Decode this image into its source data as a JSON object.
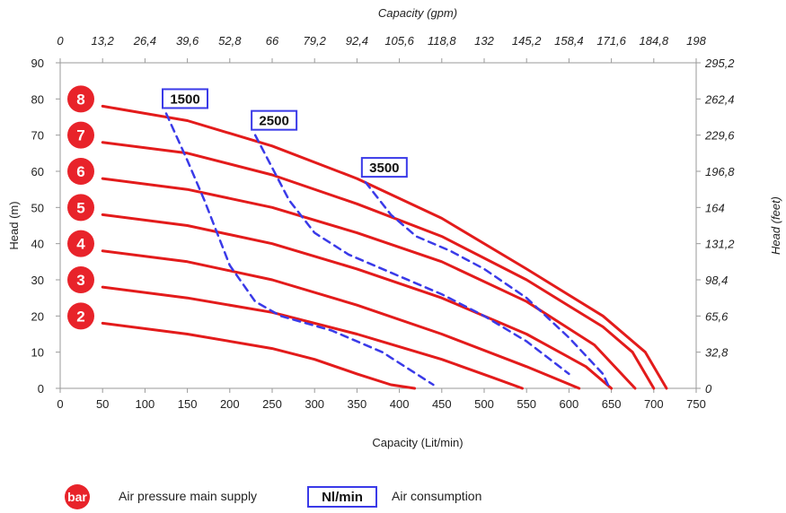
{
  "chart_data": {
    "type": "line",
    "title": "",
    "xlabel": "Capacity (Lit/min)",
    "ylabel": "Head (m)",
    "x2label": "Capacity (gpm)",
    "y2label": "Head (feet)",
    "xlim": [
      0,
      750
    ],
    "ylim": [
      0,
      90
    ],
    "x_ticks": [
      "0",
      "50",
      "100",
      "150",
      "200",
      "250",
      "300",
      "350",
      "400",
      "450",
      "500",
      "550",
      "600",
      "650",
      "700",
      "750"
    ],
    "y_ticks": [
      "0",
      "10",
      "20",
      "30",
      "40",
      "50",
      "60",
      "70",
      "80",
      "90"
    ],
    "x2_ticks": [
      "0",
      "13,2",
      "26,4",
      "39,6",
      "52,8",
      "66",
      "79,2",
      "92,4",
      "105,6",
      "118,8",
      "132",
      "145,2",
      "158,4",
      "171,6",
      "184,8",
      "198"
    ],
    "y2_ticks": [
      "0",
      "32,8",
      "65,6",
      "98,4",
      "131,2",
      "164",
      "196,8",
      "229,6",
      "262,4",
      "295,2"
    ],
    "grid": false,
    "pressure_colors": {
      "line": "#e31b1b",
      "badge": "#e8232a"
    },
    "air_color": "#3a3ae8",
    "series": [
      {
        "name": "2",
        "kind": "pressure",
        "points": [
          [
            50,
            18
          ],
          [
            150,
            15
          ],
          [
            250,
            11
          ],
          [
            300,
            8
          ],
          [
            350,
            4
          ],
          [
            390,
            1
          ],
          [
            418,
            0
          ]
        ]
      },
      {
        "name": "3",
        "kind": "pressure",
        "points": [
          [
            50,
            28
          ],
          [
            150,
            25
          ],
          [
            250,
            21
          ],
          [
            350,
            15
          ],
          [
            450,
            8
          ],
          [
            510,
            3
          ],
          [
            545,
            0
          ]
        ]
      },
      {
        "name": "4",
        "kind": "pressure",
        "points": [
          [
            50,
            38
          ],
          [
            150,
            35
          ],
          [
            250,
            30
          ],
          [
            350,
            23
          ],
          [
            450,
            15
          ],
          [
            550,
            6
          ],
          [
            612,
            0
          ]
        ]
      },
      {
        "name": "5",
        "kind": "pressure",
        "points": [
          [
            50,
            48
          ],
          [
            150,
            45
          ],
          [
            250,
            40
          ],
          [
            350,
            33
          ],
          [
            450,
            25
          ],
          [
            550,
            15
          ],
          [
            620,
            6
          ],
          [
            650,
            0
          ]
        ]
      },
      {
        "name": "6",
        "kind": "pressure",
        "points": [
          [
            50,
            58
          ],
          [
            150,
            55
          ],
          [
            250,
            50
          ],
          [
            350,
            43
          ],
          [
            450,
            35
          ],
          [
            550,
            24
          ],
          [
            630,
            12
          ],
          [
            678,
            0
          ]
        ]
      },
      {
        "name": "7",
        "kind": "pressure",
        "points": [
          [
            50,
            68
          ],
          [
            150,
            65
          ],
          [
            250,
            59
          ],
          [
            350,
            51
          ],
          [
            450,
            42
          ],
          [
            550,
            30
          ],
          [
            640,
            17
          ],
          [
            675,
            10
          ],
          [
            700,
            0
          ]
        ]
      },
      {
        "name": "8",
        "kind": "pressure",
        "points": [
          [
            50,
            78
          ],
          [
            150,
            74
          ],
          [
            250,
            67
          ],
          [
            350,
            58
          ],
          [
            450,
            47
          ],
          [
            550,
            33
          ],
          [
            640,
            20
          ],
          [
            690,
            10
          ],
          [
            715,
            0
          ]
        ]
      },
      {
        "name": "1500",
        "kind": "air",
        "points": [
          [
            125,
            76
          ],
          [
            150,
            63
          ],
          [
            170,
            52
          ],
          [
            200,
            34
          ],
          [
            230,
            24
          ],
          [
            260,
            20
          ],
          [
            320,
            16
          ],
          [
            380,
            10
          ],
          [
            440,
            1
          ]
        ]
      },
      {
        "name": "2500",
        "kind": "air",
        "points": [
          [
            230,
            70
          ],
          [
            250,
            61
          ],
          [
            270,
            52
          ],
          [
            300,
            43
          ],
          [
            340,
            37
          ],
          [
            400,
            31
          ],
          [
            450,
            26
          ],
          [
            500,
            20
          ],
          [
            550,
            13
          ],
          [
            600,
            4
          ]
        ]
      },
      {
        "name": "3500",
        "kind": "air",
        "points": [
          [
            360,
            57
          ],
          [
            390,
            48
          ],
          [
            420,
            42
          ],
          [
            460,
            38
          ],
          [
            500,
            33
          ],
          [
            550,
            25
          ],
          [
            600,
            14
          ],
          [
            640,
            4
          ],
          [
            648,
            0
          ]
        ]
      }
    ],
    "annotations": [
      {
        "text": "1500",
        "x": 125,
        "y": 76
      },
      {
        "text": "2500",
        "x": 230,
        "y": 70
      },
      {
        "text": "3500",
        "x": 360,
        "y": 57
      }
    ],
    "badges": [
      "8",
      "7",
      "6",
      "5",
      "4",
      "3",
      "2"
    ],
    "badge_values": [
      80,
      70,
      60,
      50,
      40,
      30,
      20
    ]
  },
  "legend": {
    "badge_text": "bar",
    "badge_desc": "Air pressure main supply",
    "box_text": "Nl/min",
    "box_desc": "Air consumption"
  }
}
